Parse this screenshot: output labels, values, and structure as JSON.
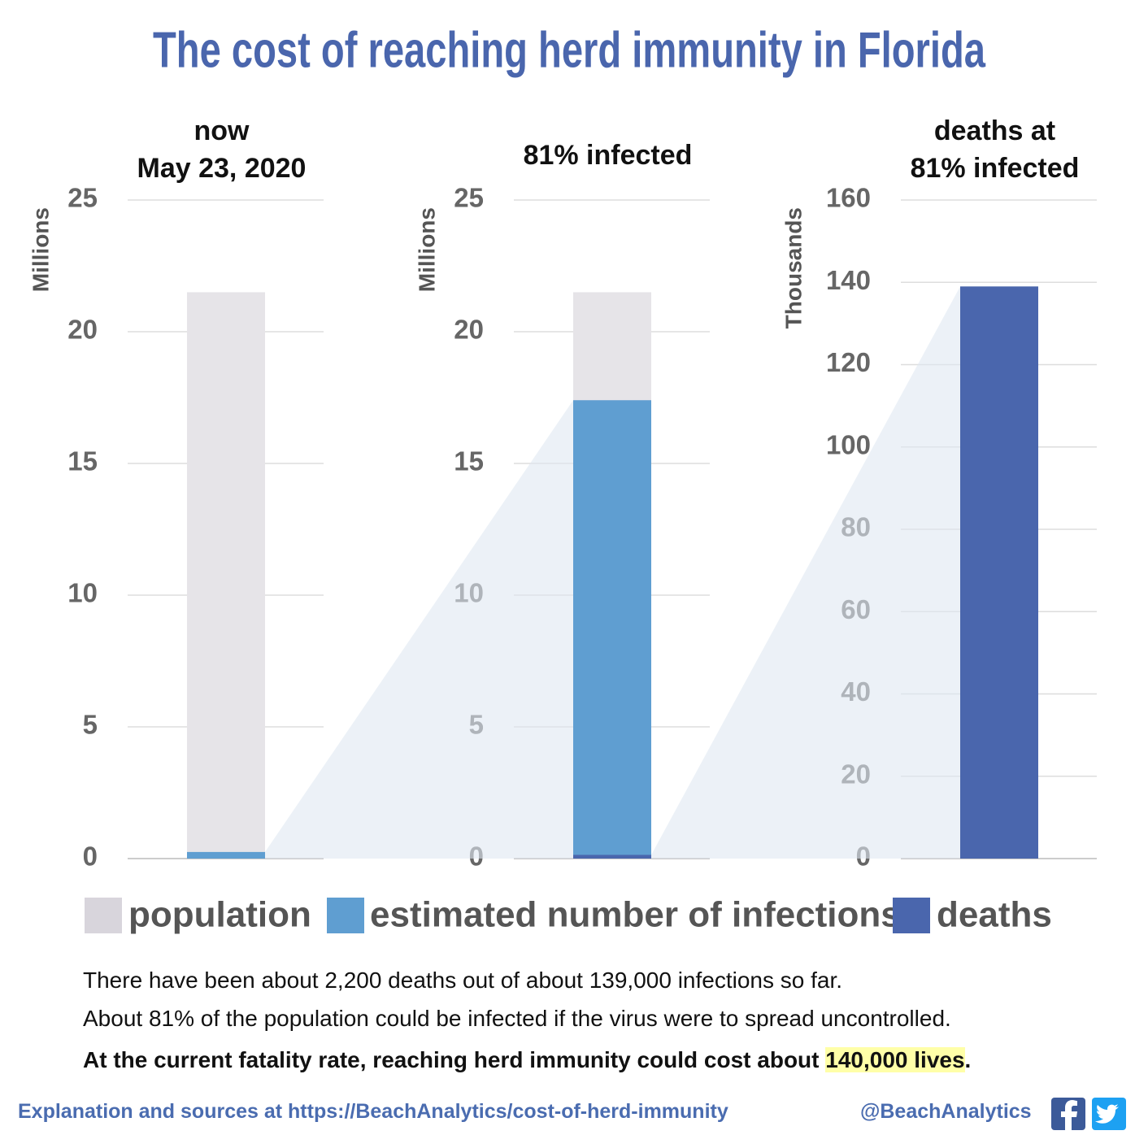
{
  "title": "The cost of reaching herd immunity in Florida",
  "chart_data": [
    {
      "type": "bar",
      "title": "now",
      "subtitle": "May 23, 2020",
      "ylabel": "Millions",
      "ylim": [
        0,
        25
      ],
      "yticks": [
        0,
        5,
        10,
        15,
        20,
        25
      ],
      "grid": true,
      "series": [
        {
          "color": "#e6e4e8",
          "values": [
            21.5
          ]
        },
        {
          "color": "#5f9ed1",
          "values": [
            0.25
          ]
        }
      ]
    },
    {
      "type": "bar",
      "title": "81% infected",
      "ylabel": "Millions",
      "ylim": [
        0,
        25
      ],
      "yticks": [
        0,
        5,
        10,
        15,
        20,
        25
      ],
      "grid": true,
      "series": [
        {
          "name": "population",
          "color": "#e6e4e8",
          "values": [
            21.5
          ]
        },
        {
          "name": "estimated number of infections",
          "color": "#5f9ed1",
          "values": [
            17.4
          ]
        },
        {
          "name": "deaths",
          "color": "#4a66ad",
          "values": [
            0.14
          ]
        }
      ]
    },
    {
      "type": "bar",
      "title": "deaths at",
      "subtitle": "81% infected",
      "ylabel": "Thousands",
      "ylim": [
        0,
        160
      ],
      "yticks": [
        0,
        20,
        40,
        60,
        80,
        100,
        120,
        140,
        160
      ],
      "grid": true,
      "series": [
        {
          "color": "#4a66ad",
          "values": [
            139
          ]
        }
      ]
    }
  ],
  "notes": [
    "There have been about 2,200 deaths out of about 139,000 infections so far.",
    "About 81% of the population could be infected if the virus were to spread uncontrolled."
  ],
  "conclusion": {
    "text": "At the current fatality rate, reaching herd immunity could cost about ",
    "highlight": "140,000 lives",
    "end": "."
  },
  "footer": {
    "sources": "Explanation and sources at https://BeachAnalytics/cost-of-herd-immunity",
    "handle": "@BeachAnalytics"
  }
}
